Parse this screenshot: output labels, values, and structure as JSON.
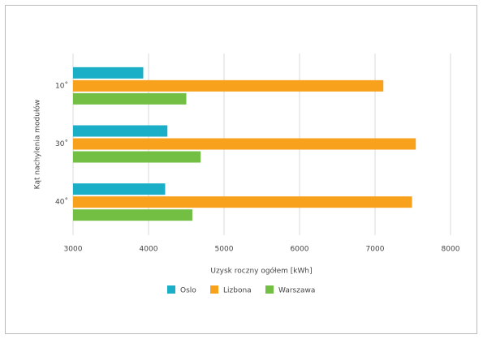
{
  "chart_data": {
    "type": "hbar",
    "x_label": "Uzysk roczny ogółem [kWh]",
    "y_label": "Kąt nachylenia modułów",
    "categories": [
      "10˚",
      "30˚",
      "40˚"
    ],
    "series": [
      {
        "name": "Oslo",
        "color": "#1aafc7",
        "values": [
          3930,
          4250,
          4220
        ]
      },
      {
        "name": "Lizbona",
        "color": "#f7a11c",
        "values": [
          7110,
          7540,
          7490
        ]
      },
      {
        "name": "Warszawa",
        "color": "#72bf44",
        "values": [
          4500,
          4690,
          4580
        ]
      }
    ],
    "xlim": [
      3000,
      8000
    ],
    "xticks": [
      3000,
      4000,
      5000,
      6000,
      7000,
      8000
    ],
    "grid": true
  }
}
